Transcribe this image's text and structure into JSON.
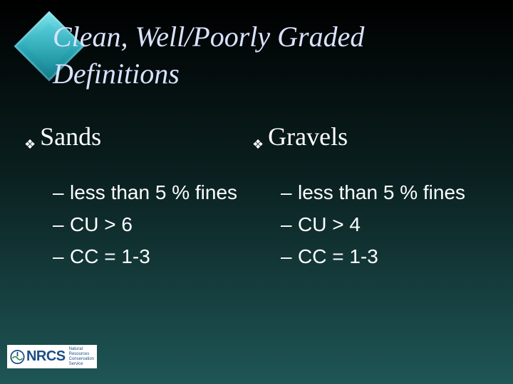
{
  "title": "Clean, Well/Poorly Graded Definitions",
  "bullet_glyph": "❖",
  "dash_glyph": "–",
  "sands": {
    "heading": "Sands",
    "items": [
      "less than 5 % fines",
      "CU > 6",
      "CC = 1-3"
    ]
  },
  "gravels": {
    "heading": "Gravels",
    "items": [
      "less than 5 % fines",
      "CU > 4",
      "CC = 1-3"
    ]
  },
  "logo": {
    "name": "NRCS",
    "subtitle": "Natural Resources Conservation Service"
  },
  "colors": {
    "title": "#d9e2ff",
    "text": "#ffffff",
    "accent": "#2aa7b5",
    "logo_blue": "#1c4e86"
  }
}
